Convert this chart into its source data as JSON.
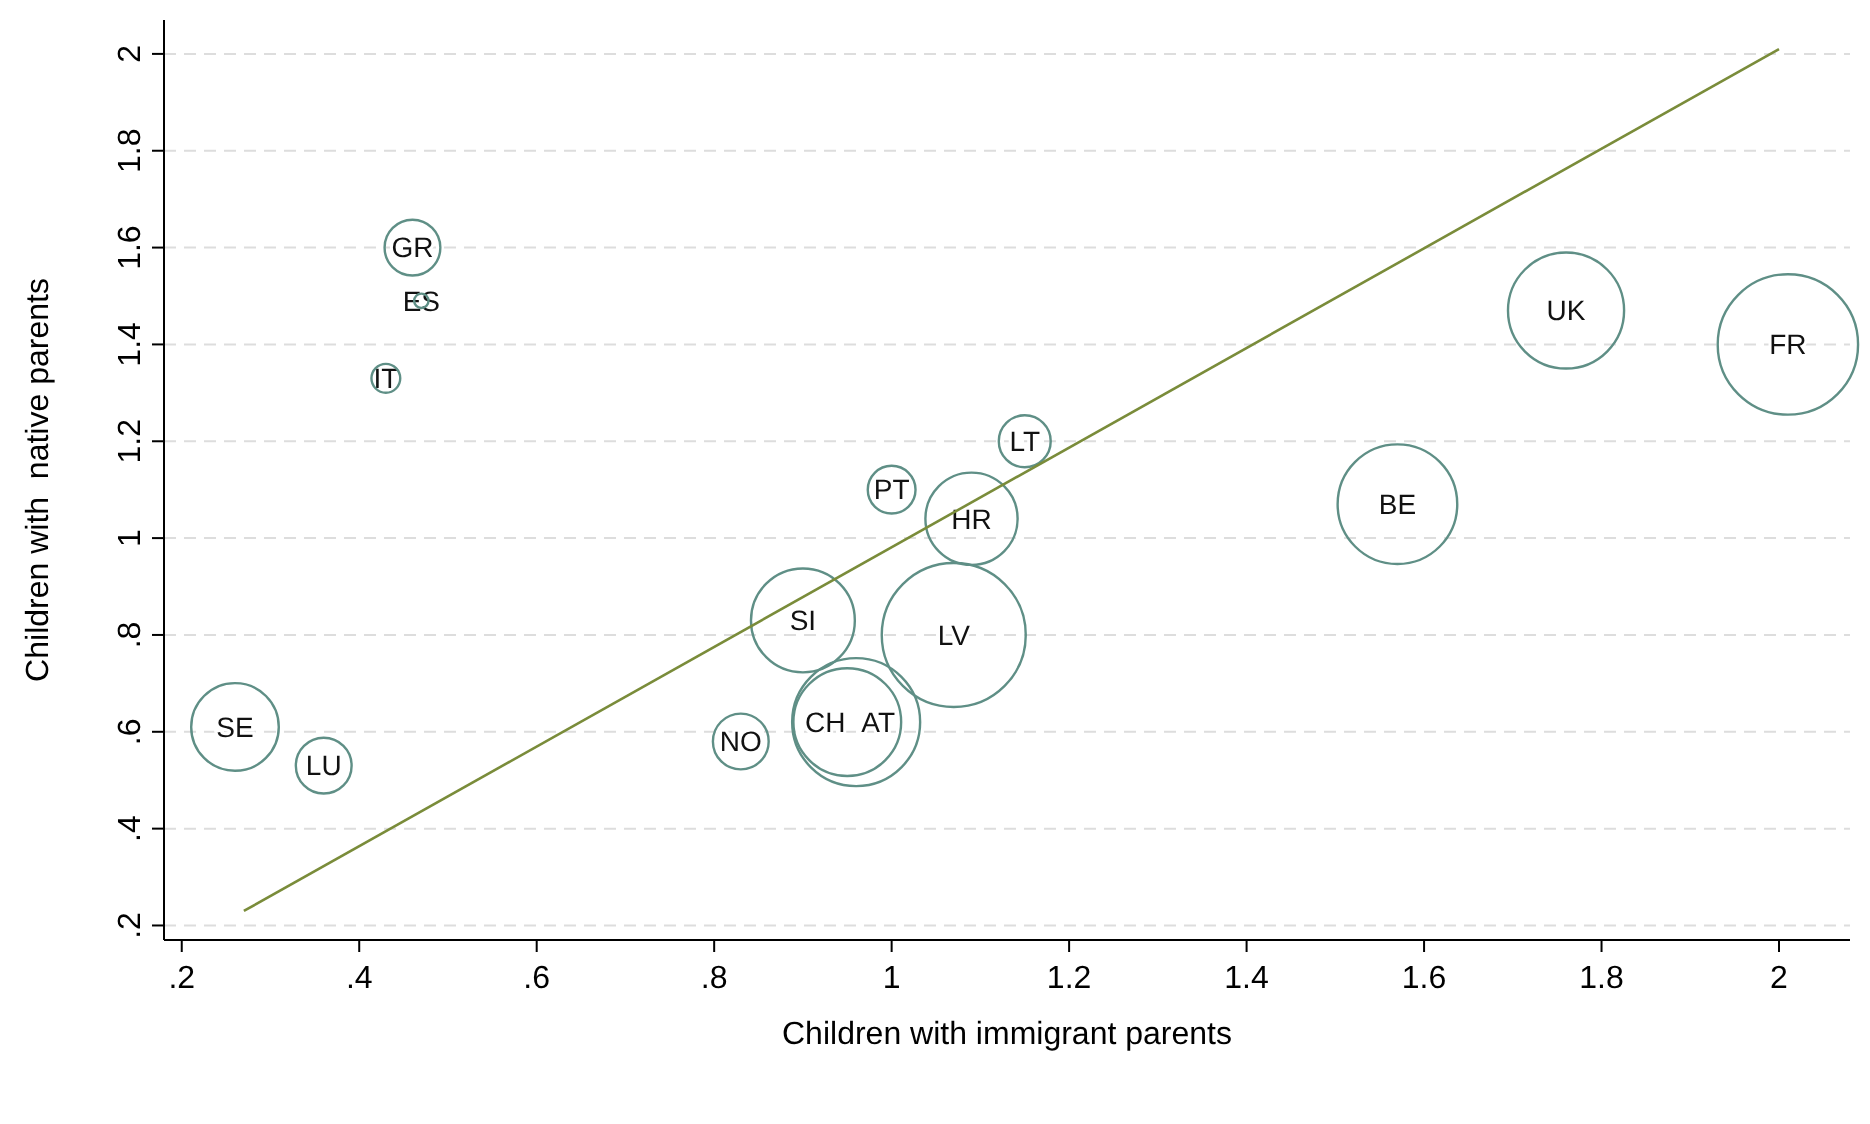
{
  "chart_data": {
    "type": "bubble",
    "xlabel": "Children with immigrant parents",
    "ylabel": "Children with  native parents",
    "xlim": [
      0.18,
      2.08
    ],
    "ylim": [
      0.17,
      2.07
    ],
    "xticks": [
      {
        "value": 0.2,
        "label": ".2"
      },
      {
        "value": 0.4,
        "label": ".4"
      },
      {
        "value": 0.6,
        "label": ".6"
      },
      {
        "value": 0.8,
        "label": ".8"
      },
      1,
      1.2,
      1.4,
      1.6,
      1.8,
      2
    ],
    "yticks": [
      {
        "value": 0.2,
        "label": ".2"
      },
      {
        "value": 0.4,
        "label": ".4"
      },
      {
        "value": 0.6,
        "label": ".6"
      },
      {
        "value": 0.8,
        "label": ".8"
      },
      1,
      1.2,
      1.4,
      1.6,
      1.8,
      2
    ],
    "grid": "y",
    "series": [
      {
        "name": "GR",
        "color": "#5f8f86",
        "x": [
          0.46
        ],
        "values": [
          1.6
        ],
        "sizes": [
          0.15
        ]
      },
      {
        "name": "ES",
        "color": "#5f8f86",
        "x": [
          0.47
        ],
        "values": [
          1.49
        ],
        "sizes": [
          0.01
        ]
      },
      {
        "name": "IT",
        "color": "#5f8f86",
        "x": [
          0.43
        ],
        "values": [
          1.33
        ],
        "sizes": [
          0.04
        ]
      },
      {
        "name": "SE",
        "color": "#5f8f86",
        "x": [
          0.26
        ],
        "values": [
          0.61
        ],
        "sizes": [
          0.37
        ]
      },
      {
        "name": "LU",
        "color": "#5f8f86",
        "x": [
          0.36
        ],
        "values": [
          0.53
        ],
        "sizes": [
          0.15
        ]
      },
      {
        "name": "NO",
        "color": "#5f8f86",
        "x": [
          0.83
        ],
        "values": [
          0.58
        ],
        "sizes": [
          0.15
        ]
      },
      {
        "name": "CH",
        "color": "#5f8f86",
        "x": [
          0.95
        ],
        "values": [
          0.62
        ],
        "sizes": [
          0.56
        ]
      },
      {
        "name": "AT",
        "color": "#5f8f86",
        "x": [
          0.96
        ],
        "values": [
          0.62
        ],
        "sizes": [
          0.79
        ]
      },
      {
        "name": "SI",
        "color": "#5f8f86",
        "x": [
          0.9
        ],
        "values": [
          0.83
        ],
        "sizes": [
          0.52
        ]
      },
      {
        "name": "LV",
        "color": "#5f8f86",
        "x": [
          1.07
        ],
        "values": [
          0.8
        ],
        "sizes": [
          1
        ]
      },
      {
        "name": "PT",
        "color": "#5f8f86",
        "x": [
          1.0
        ],
        "values": [
          1.1
        ],
        "sizes": [
          0.11
        ]
      },
      {
        "name": "HR",
        "color": "#5f8f86",
        "x": [
          1.09
        ],
        "values": [
          1.04
        ],
        "sizes": [
          0.41
        ]
      },
      {
        "name": "LT",
        "color": "#5f8f86",
        "x": [
          1.15
        ],
        "values": [
          1.2
        ],
        "sizes": [
          0.13
        ]
      },
      {
        "name": "BE",
        "color": "#5f8f86",
        "x": [
          1.57
        ],
        "values": [
          1.07
        ],
        "sizes": [
          0.69
        ]
      },
      {
        "name": "UK",
        "color": "#5f8f86",
        "x": [
          1.76
        ],
        "values": [
          1.47
        ],
        "sizes": [
          0.65
        ]
      },
      {
        "name": "FR",
        "color": "#5f8f86",
        "x": [
          2.01
        ],
        "values": [
          1.4
        ],
        "sizes": [
          0.95
        ]
      },
      {
        "type": "line",
        "color": "#7a8c3a",
        "x": [
          0.27,
          2.0
        ],
        "values": [
          0.23,
          2.01
        ]
      }
    ]
  }
}
